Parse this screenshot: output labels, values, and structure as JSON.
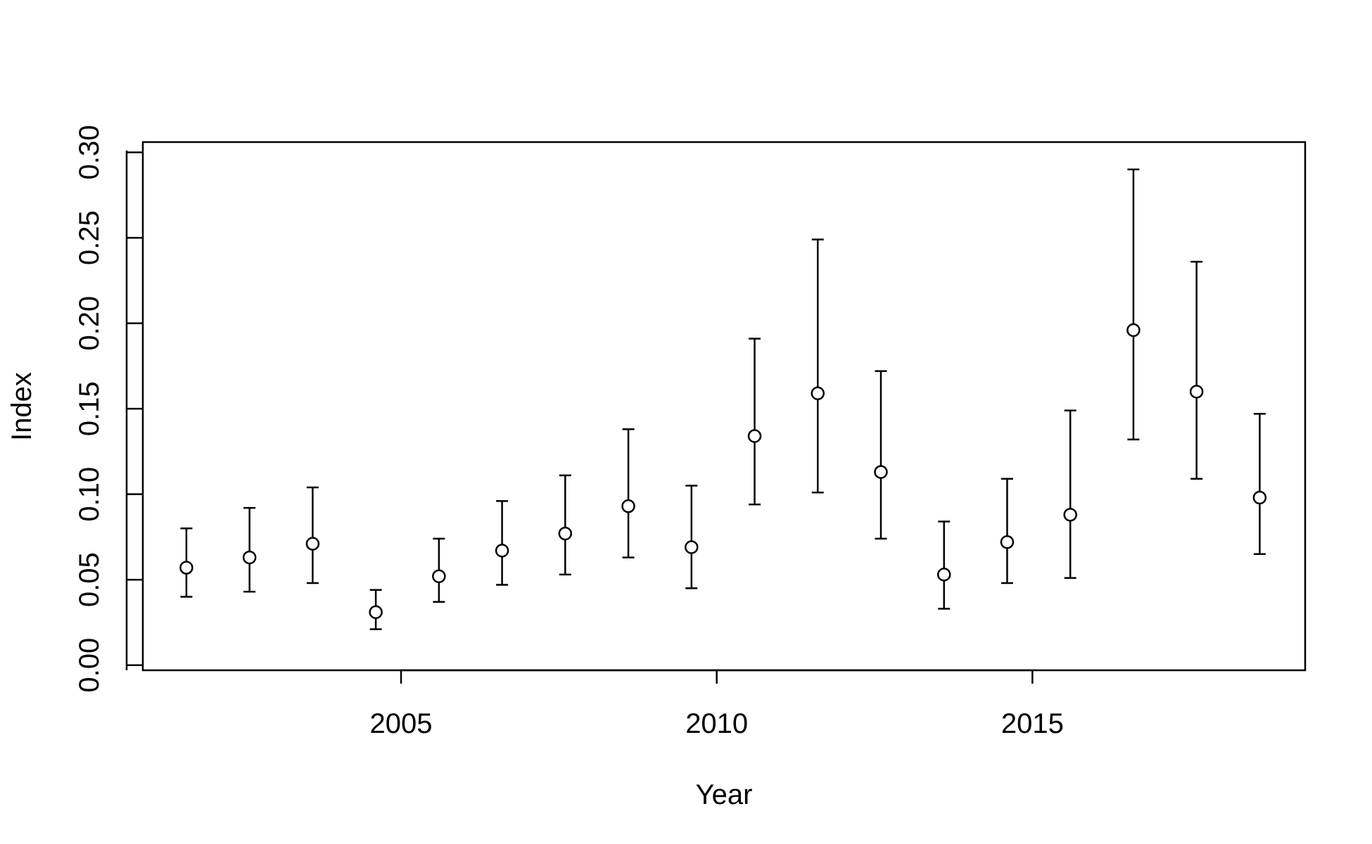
{
  "chart_data": {
    "type": "scatter",
    "title": "",
    "xlabel": "Year",
    "ylabel": "Index",
    "xlim": [
      2000.91,
      2019.32
    ],
    "ylim": [
      -0.003,
      0.306
    ],
    "x_ticks": [
      2005,
      2010,
      2015
    ],
    "y_ticks": [
      0.0,
      0.05,
      0.1,
      0.15,
      0.2,
      0.25,
      0.3
    ],
    "x_tick_labels": [
      "2005",
      "2010",
      "2015"
    ],
    "y_tick_labels": [
      "0.00",
      "0.05",
      "0.10",
      "0.15",
      "0.20",
      "0.25",
      "0.30"
    ],
    "grid": false,
    "legend": "none",
    "colors": {
      "stroke": "#000000",
      "point_fill": "#ffffff"
    },
    "series": [
      {
        "marker": "open-circle",
        "error_bars": true,
        "x": [
          2001.6,
          2002.6,
          2003.6,
          2004.6,
          2005.6,
          2006.6,
          2007.6,
          2008.6,
          2009.6,
          2010.6,
          2011.6,
          2012.6,
          2013.6,
          2014.6,
          2015.6,
          2016.6,
          2017.6,
          2018.6
        ],
        "y": [
          0.057,
          0.063,
          0.071,
          0.031,
          0.052,
          0.067,
          0.077,
          0.093,
          0.069,
          0.134,
          0.159,
          0.113,
          0.053,
          0.072,
          0.088,
          0.196,
          0.16,
          0.098
        ],
        "lower": [
          0.04,
          0.043,
          0.048,
          0.021,
          0.037,
          0.047,
          0.053,
          0.063,
          0.045,
          0.094,
          0.101,
          0.074,
          0.033,
          0.048,
          0.051,
          0.132,
          0.109,
          0.065
        ],
        "upper": [
          0.08,
          0.092,
          0.104,
          0.044,
          0.074,
          0.096,
          0.111,
          0.138,
          0.105,
          0.191,
          0.249,
          0.172,
          0.084,
          0.109,
          0.149,
          0.29,
          0.236,
          0.147
        ]
      }
    ]
  }
}
